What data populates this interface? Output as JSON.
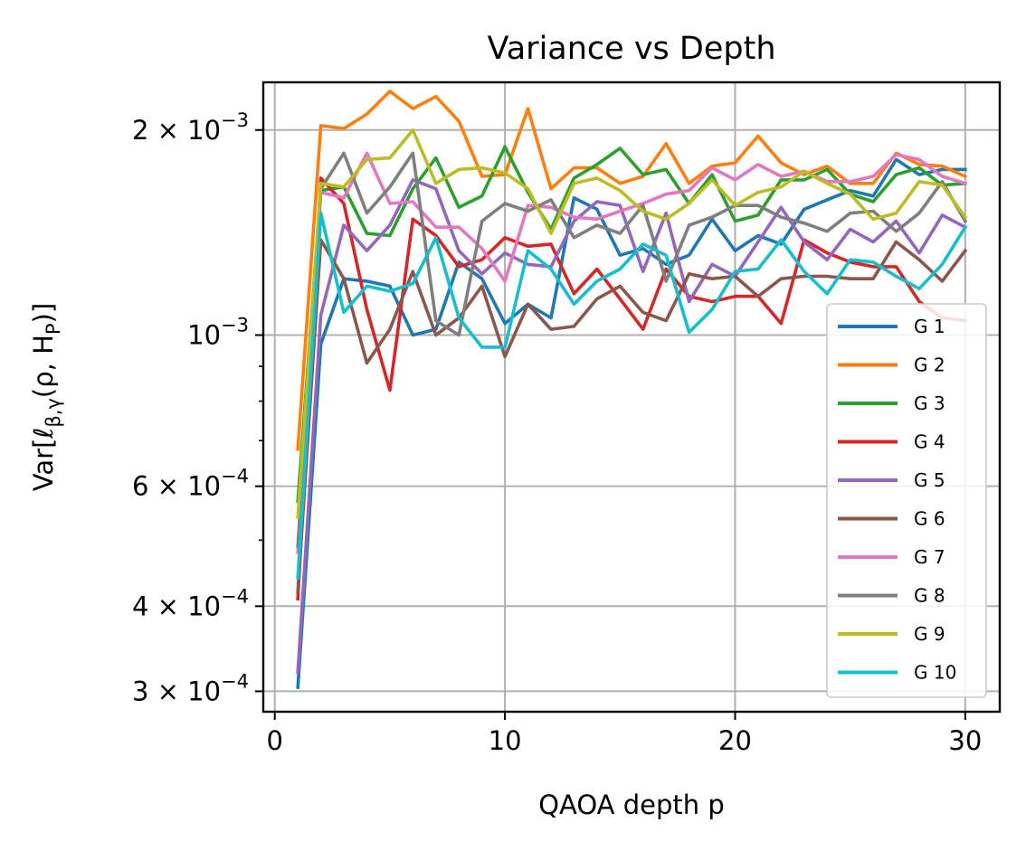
{
  "chart_data": {
    "type": "line",
    "title": "Variance vs Depth",
    "xlabel": "QAOA depth p",
    "ylabel": "Var[ℓ",
    "ylabel_sub": "β,γ",
    "ylabel_rest": "(ρ, H",
    "ylabel_sub2": "P",
    "ylabel_end": ")]",
    "x_scale": "linear",
    "y_scale": "log",
    "xlim": [
      -0.5,
      31.5
    ],
    "ylim": [
      0.00028,
      0.00235
    ],
    "x_ticks": [
      0,
      10,
      20,
      30
    ],
    "x_tick_labels": [
      "0",
      "10",
      "20",
      "30"
    ],
    "y_ticks": [
      {
        "value": 0.0003,
        "mant": "3 × 10",
        "exp": "−4"
      },
      {
        "value": 0.0004,
        "mant": "4 × 10",
        "exp": "−4"
      },
      {
        "value": 0.0006,
        "mant": "6 × 10",
        "exp": "−4"
      },
      {
        "value": 0.001,
        "mant": "10",
        "exp": "−3"
      },
      {
        "value": 0.002,
        "mant": "2 × 10",
        "exp": "−3"
      }
    ],
    "y_minor_ticks": [
      0.0005,
      0.0007,
      0.0008,
      0.0009
    ],
    "grid": true,
    "legend_position": "lower right",
    "x": [
      1,
      2,
      3,
      4,
      5,
      6,
      7,
      8,
      9,
      10,
      11,
      12,
      13,
      14,
      15,
      16,
      17,
      18,
      19,
      20,
      21,
      22,
      23,
      24,
      25,
      26,
      27,
      28,
      29,
      30
    ],
    "series": [
      {
        "name": "G 1",
        "color": "#1f77b4",
        "values": [
          0.000304,
          0.00097,
          0.00121,
          0.0012,
          0.00118,
          0.001,
          0.00102,
          0.00128,
          0.00121,
          0.00104,
          0.00111,
          0.00106,
          0.00159,
          0.00153,
          0.00131,
          0.00134,
          0.00127,
          0.00131,
          0.00148,
          0.00133,
          0.0014,
          0.00136,
          0.00153,
          0.00158,
          0.00163,
          0.0016,
          0.00181,
          0.00172,
          0.00175,
          0.00175
        ]
      },
      {
        "name": "G 2",
        "color": "#ff7f0e",
        "values": [
          0.00068,
          0.00203,
          0.00201,
          0.00211,
          0.00228,
          0.00215,
          0.00224,
          0.00206,
          0.00171,
          0.00172,
          0.00215,
          0.00164,
          0.00176,
          0.00176,
          0.00167,
          0.00171,
          0.00191,
          0.00167,
          0.00177,
          0.00179,
          0.00196,
          0.00179,
          0.00172,
          0.00177,
          0.00167,
          0.00167,
          0.00185,
          0.00178,
          0.00177,
          0.00171
        ]
      },
      {
        "name": "G 3",
        "color": "#2ca02c",
        "values": [
          0.00057,
          0.00163,
          0.00165,
          0.00141,
          0.0014,
          0.00164,
          0.00182,
          0.00154,
          0.0016,
          0.00189,
          0.00162,
          0.00143,
          0.0017,
          0.00178,
          0.00188,
          0.00172,
          0.00175,
          0.00156,
          0.00172,
          0.00147,
          0.0015,
          0.00169,
          0.00169,
          0.00175,
          0.00161,
          0.00157,
          0.00172,
          0.00176,
          0.00166,
          0.00167
        ]
      },
      {
        "name": "G 4",
        "color": "#d62728",
        "values": [
          0.00041,
          0.0017,
          0.00156,
          0.00109,
          0.00083,
          0.00148,
          0.0014,
          0.00126,
          0.00129,
          0.00139,
          0.00135,
          0.00136,
          0.00115,
          0.00125,
          0.00113,
          0.00102,
          0.00125,
          0.00114,
          0.00112,
          0.00114,
          0.00114,
          0.00104,
          0.00138,
          0.00132,
          0.00128,
          0.00126,
          0.00126,
          0.00112,
          0.00106,
          0.00105
        ]
      },
      {
        "name": "G 5",
        "color": "#9467bd",
        "values": [
          0.00032,
          0.00107,
          0.00145,
          0.00133,
          0.00145,
          0.00169,
          0.00164,
          0.00133,
          0.00123,
          0.00132,
          0.00127,
          0.00126,
          0.00147,
          0.00157,
          0.00155,
          0.00124,
          0.00151,
          0.00112,
          0.00127,
          0.00122,
          0.00137,
          0.00154,
          0.00137,
          0.00129,
          0.00143,
          0.00137,
          0.00147,
          0.00132,
          0.0015,
          0.00144
        ]
      },
      {
        "name": "G 6",
        "color": "#8c564b",
        "values": [
          0.00042,
          0.00138,
          0.00121,
          0.00091,
          0.00102,
          0.00124,
          0.001,
          0.00106,
          0.00118,
          0.00093,
          0.00111,
          0.00102,
          0.00103,
          0.00113,
          0.00118,
          0.00108,
          0.00105,
          0.00123,
          0.00121,
          0.00122,
          0.00114,
          0.00121,
          0.00122,
          0.00122,
          0.00121,
          0.00121,
          0.00137,
          0.00129,
          0.0012,
          0.00133
        ]
      },
      {
        "name": "G 7",
        "color": "#e377c2",
        "values": [
          0.00048,
          0.00162,
          0.00159,
          0.00185,
          0.00156,
          0.00157,
          0.00144,
          0.00144,
          0.00134,
          0.0012,
          0.00155,
          0.00154,
          0.00149,
          0.00148,
          0.00152,
          0.00156,
          0.00161,
          0.00163,
          0.00176,
          0.00169,
          0.00178,
          0.00171,
          0.00174,
          0.00168,
          0.00168,
          0.00171,
          0.00184,
          0.00181,
          0.00171,
          0.00167
        ]
      },
      {
        "name": "G 8",
        "color": "#7f7f7f",
        "values": [
          0.00049,
          0.00164,
          0.00185,
          0.00151,
          0.00165,
          0.00185,
          0.00105,
          0.001,
          0.00147,
          0.00156,
          0.00152,
          0.00158,
          0.00139,
          0.00145,
          0.00141,
          0.00155,
          0.0012,
          0.00145,
          0.00149,
          0.00155,
          0.00155,
          0.00149,
          0.00146,
          0.00142,
          0.00151,
          0.00152,
          0.00142,
          0.00151,
          0.00168,
          0.00147
        ]
      },
      {
        "name": "G 9",
        "color": "#bcbd22",
        "values": [
          0.00054,
          0.00167,
          0.00165,
          0.00181,
          0.00182,
          0.002,
          0.00167,
          0.00175,
          0.00176,
          0.00173,
          0.00164,
          0.00141,
          0.00167,
          0.0017,
          0.00163,
          0.00152,
          0.00148,
          0.00156,
          0.00169,
          0.00155,
          0.00162,
          0.00165,
          0.00174,
          0.00167,
          0.00161,
          0.00148,
          0.00151,
          0.00168,
          0.00166,
          0.00149
        ]
      },
      {
        "name": "G 10",
        "color": "#17becf",
        "values": [
          0.00044,
          0.00151,
          0.00108,
          0.00118,
          0.00116,
          0.00119,
          0.00139,
          0.00106,
          0.00096,
          0.00096,
          0.00133,
          0.00125,
          0.00111,
          0.0012,
          0.00125,
          0.00136,
          0.00131,
          0.00101,
          0.00109,
          0.00124,
          0.00125,
          0.00138,
          0.00124,
          0.00115,
          0.00129,
          0.00128,
          0.00122,
          0.00117,
          0.00127,
          0.00144
        ]
      }
    ]
  }
}
